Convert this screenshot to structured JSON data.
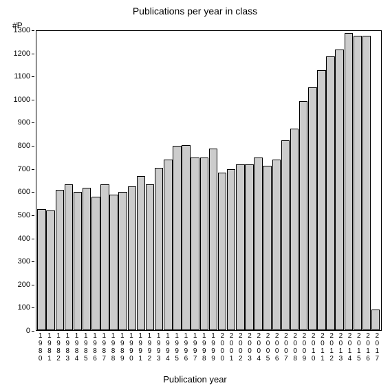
{
  "chart": {
    "type": "bar",
    "title": "Publications per year in class",
    "y_label": "#P",
    "x_title": "Publication year",
    "title_fontsize": 14,
    "label_fontsize": 12,
    "tick_fontsize": 11,
    "background_color": "#ffffff",
    "bar_fill": "#cccccc",
    "bar_border": "#000000",
    "axis_color": "#000000",
    "ylim": [
      0,
      1300
    ],
    "ytick_step": 100,
    "yticks": [
      0,
      100,
      200,
      300,
      400,
      500,
      600,
      700,
      800,
      900,
      1000,
      1100,
      1200,
      1300
    ],
    "categories": [
      "1980",
      "1981",
      "1982",
      "1983",
      "1984",
      "1985",
      "1986",
      "1987",
      "1988",
      "1989",
      "1990",
      "1991",
      "1992",
      "1993",
      "1994",
      "1995",
      "1996",
      "1997",
      "1998",
      "1999",
      "2000",
      "2001",
      "2002",
      "2003",
      "2004",
      "2005",
      "2006",
      "2007",
      "2008",
      "2009",
      "2010",
      "2011",
      "2012",
      "2013",
      "2014",
      "2015",
      "2016",
      "2017"
    ],
    "values": [
      525,
      520,
      610,
      635,
      600,
      620,
      580,
      635,
      590,
      600,
      625,
      670,
      635,
      705,
      740,
      800,
      805,
      750,
      750,
      790,
      685,
      700,
      720,
      720,
      750,
      715,
      740,
      825,
      875,
      995,
      1055,
      1130,
      1190,
      1220,
      1290,
      1280,
      1280,
      90
    ]
  }
}
